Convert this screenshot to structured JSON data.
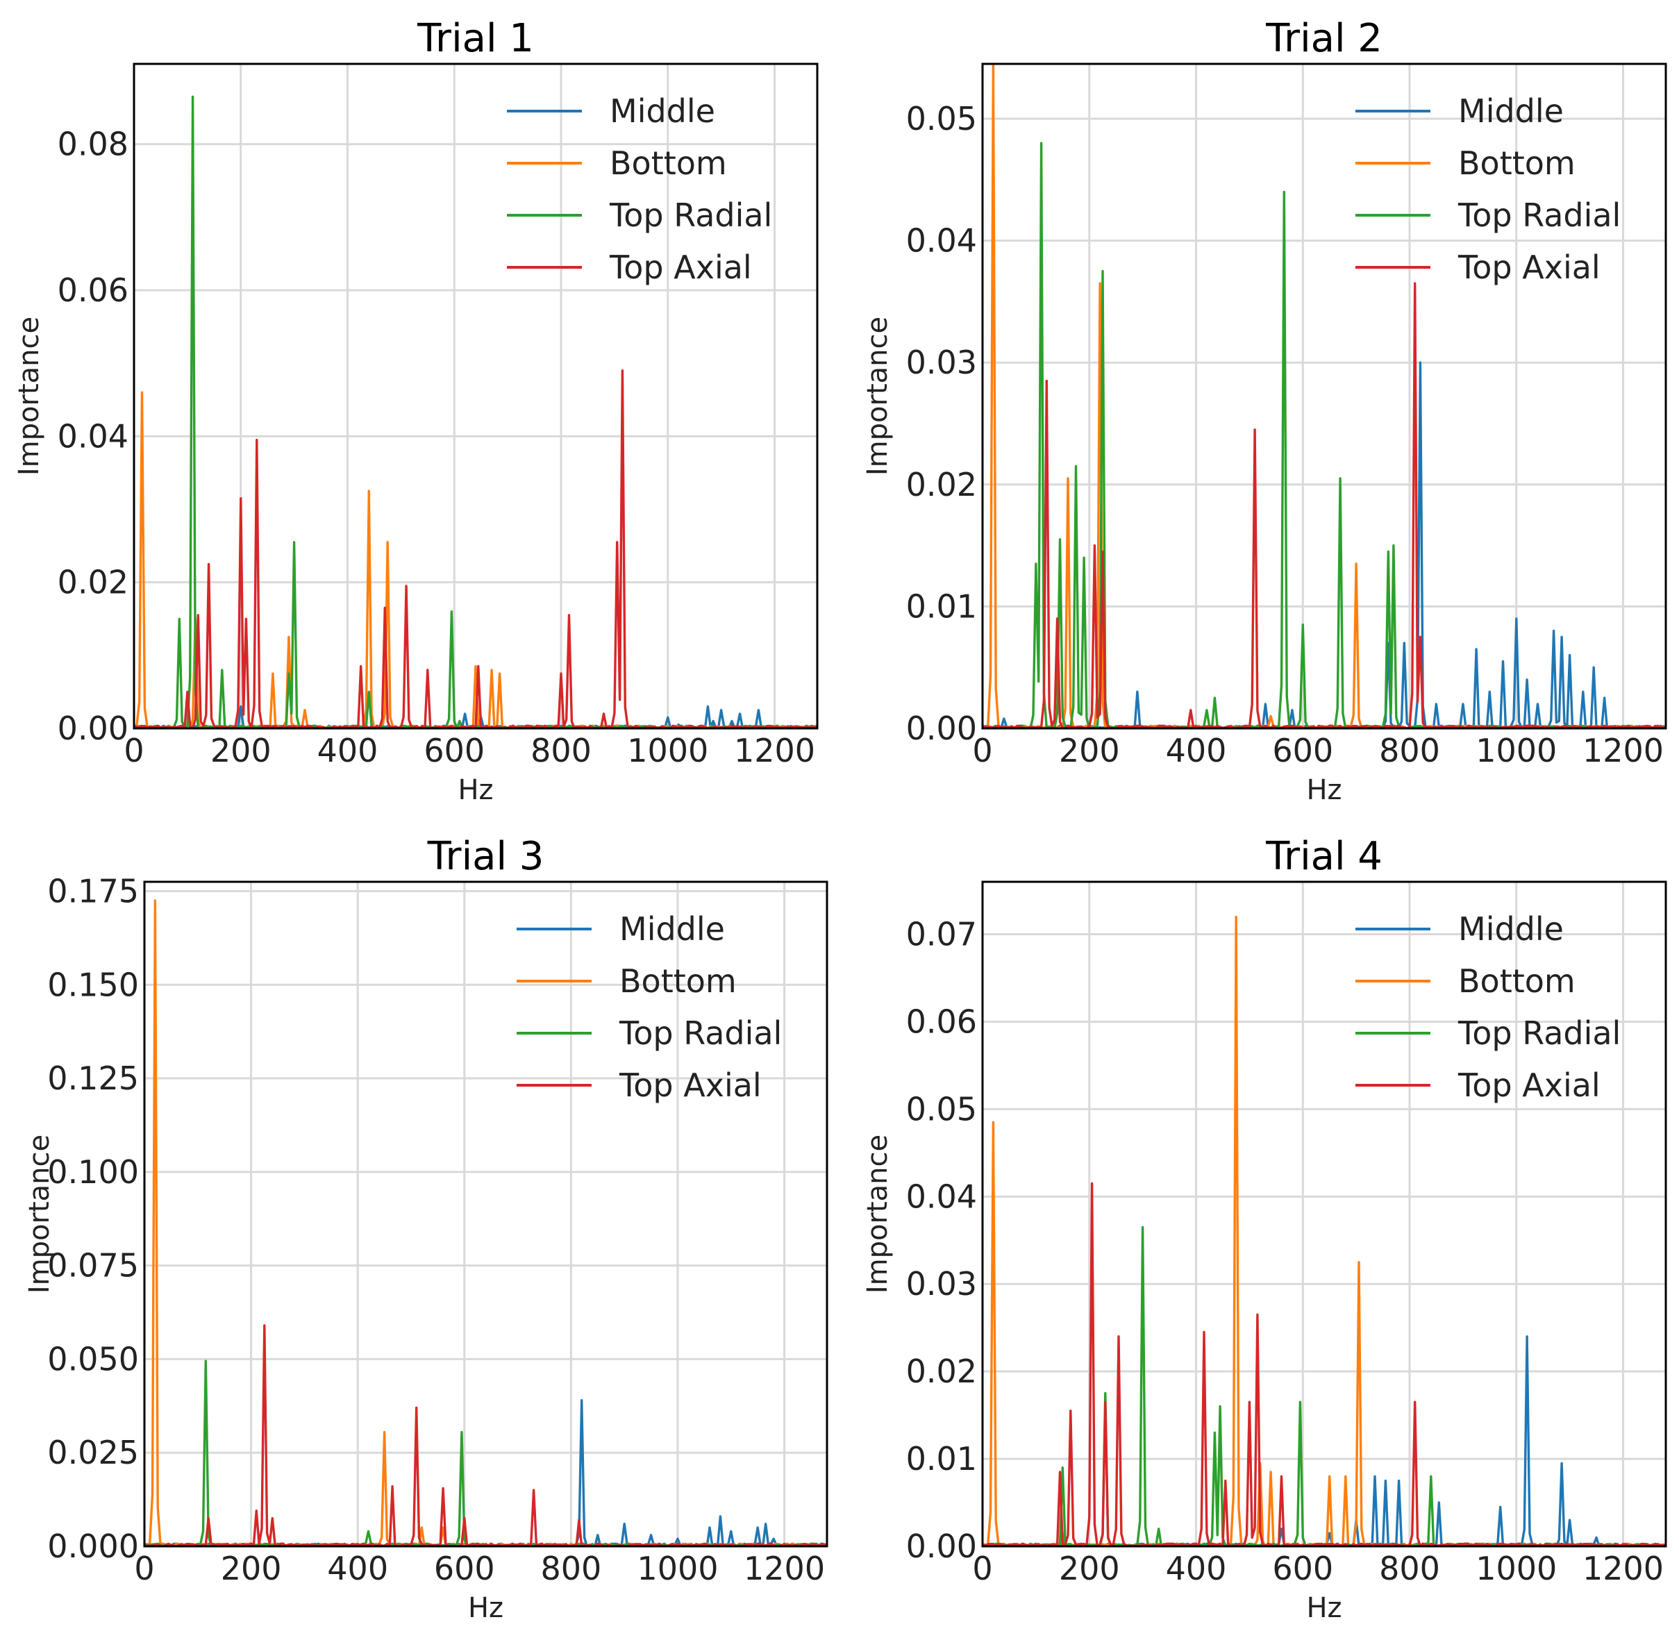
{
  "colors": {
    "Middle": "#1f77b4",
    "Bottom": "#ff7f0e",
    "Top Radial": "#2ca02c",
    "Top Axial": "#d62728"
  },
  "chart_data": [
    {
      "type": "line",
      "title": "Trial 1",
      "xlabel": "Hz",
      "ylabel": "Importance",
      "xlim": [
        0,
        1280
      ],
      "ylim": [
        0,
        0.091
      ],
      "xticks": [
        0,
        200,
        400,
        600,
        800,
        1000,
        1200
      ],
      "xtick_labels": [
        "0",
        "200",
        "400",
        "600",
        "800",
        "1000",
        "1200"
      ],
      "yticks": [
        0,
        0.02,
        0.04,
        0.06,
        0.08
      ],
      "ytick_labels": [
        "0.00",
        "0.02",
        "0.04",
        "0.06",
        "0.08"
      ],
      "legend": [
        "Middle",
        "Bottom",
        "Top Radial",
        "Top Axial"
      ],
      "legend_position": "top-right",
      "series": [
        {
          "name": "Middle",
          "peaks": [
            [
              1050,
              0.0
            ],
            [
              1075,
              0.003
            ],
            [
              1085,
              0.001
            ],
            [
              1100,
              0.0025
            ],
            [
              1120,
              0.001
            ],
            [
              1135,
              0.002
            ],
            [
              1150,
              0.0
            ],
            [
              1170,
              0.0025
            ],
            [
              1185,
              0.0
            ],
            [
              1000,
              0.0015
            ],
            [
              1020,
              0.0005
            ],
            [
              200,
              0.003
            ],
            [
              620,
              0.002
            ],
            [
              650,
              0.0015
            ]
          ]
        },
        {
          "name": "Bottom",
          "peaks": [
            [
              15,
              0.046
            ],
            [
              115,
              0.015
            ],
            [
              260,
              0.0075
            ],
            [
              290,
              0.0125
            ],
            [
              440,
              0.0325
            ],
            [
              475,
              0.0255
            ],
            [
              640,
              0.0085
            ],
            [
              670,
              0.008
            ],
            [
              685,
              0.0075
            ],
            [
              320,
              0.0025
            ]
          ]
        },
        {
          "name": "Top Radial",
          "peaks": [
            [
              85,
              0.015
            ],
            [
              110,
              0.0865
            ],
            [
              165,
              0.008
            ],
            [
              300,
              0.0255
            ],
            [
              290,
              0.0075
            ],
            [
              440,
              0.005
            ],
            [
              595,
              0.016
            ],
            [
              610,
              0.001
            ]
          ]
        },
        {
          "name": "Top Axial",
          "peaks": [
            [
              100,
              0.005
            ],
            [
              120,
              0.0155
            ],
            [
              140,
              0.0225
            ],
            [
              200,
              0.0315
            ],
            [
              210,
              0.015
            ],
            [
              230,
              0.0395
            ],
            [
              425,
              0.0085
            ],
            [
              470,
              0.0165
            ],
            [
              510,
              0.0195
            ],
            [
              550,
              0.008
            ],
            [
              645,
              0.0085
            ],
            [
              800,
              0.0075
            ],
            [
              815,
              0.0155
            ],
            [
              880,
              0.002
            ],
            [
              905,
              0.0255
            ],
            [
              915,
              0.049
            ]
          ]
        }
      ]
    },
    {
      "type": "line",
      "title": "Trial 2",
      "xlabel": "Hz",
      "ylabel": "Importance",
      "xlim": [
        0,
        1280
      ],
      "ylim": [
        0,
        0.0545
      ],
      "xticks": [
        0,
        200,
        400,
        600,
        800,
        1000,
        1200
      ],
      "xtick_labels": [
        "0",
        "200",
        "400",
        "600",
        "800",
        "1000",
        "1200"
      ],
      "yticks": [
        0,
        0.01,
        0.02,
        0.03,
        0.04,
        0.05
      ],
      "ytick_labels": [
        "0.00",
        "0.01",
        "0.02",
        "0.03",
        "0.04",
        "0.05"
      ],
      "legend": [
        "Middle",
        "Bottom",
        "Top Radial",
        "Top Axial"
      ],
      "legend_position": "top-right",
      "series": [
        {
          "name": "Middle",
          "peaks": [
            [
              290,
              0.003
            ],
            [
              530,
              0.002
            ],
            [
              580,
              0.0015
            ],
            [
              760,
              0.007
            ],
            [
              790,
              0.007
            ],
            [
              820,
              0.03
            ],
            [
              850,
              0.002
            ],
            [
              900,
              0.002
            ],
            [
              925,
              0.0065
            ],
            [
              950,
              0.003
            ],
            [
              975,
              0.0055
            ],
            [
              1000,
              0.009
            ],
            [
              1020,
              0.004
            ],
            [
              1040,
              0.002
            ],
            [
              1070,
              0.008
            ],
            [
              1085,
              0.0075
            ],
            [
              1100,
              0.006
            ],
            [
              1125,
              0.003
            ],
            [
              1145,
              0.005
            ],
            [
              1165,
              0.0025
            ],
            [
              40,
              0.0008
            ]
          ]
        },
        {
          "name": "Bottom",
          "peaks": [
            [
              20,
              0.0545
            ],
            [
              160,
              0.0205
            ],
            [
              220,
              0.0365
            ],
            [
              700,
              0.0135
            ],
            [
              540,
              0.001
            ]
          ]
        },
        {
          "name": "Top Radial",
          "peaks": [
            [
              100,
              0.0135
            ],
            [
              110,
              0.048
            ],
            [
              145,
              0.0155
            ],
            [
              175,
              0.0215
            ],
            [
              190,
              0.014
            ],
            [
              225,
              0.0375
            ],
            [
              420,
              0.0015
            ],
            [
              435,
              0.0025
            ],
            [
              565,
              0.044
            ],
            [
              600,
              0.0085
            ],
            [
              670,
              0.0205
            ],
            [
              760,
              0.0145
            ],
            [
              770,
              0.015
            ]
          ]
        },
        {
          "name": "Top Axial",
          "peaks": [
            [
              120,
              0.0285
            ],
            [
              140,
              0.009
            ],
            [
              210,
              0.015
            ],
            [
              225,
              0.0145
            ],
            [
              390,
              0.0015
            ],
            [
              510,
              0.0245
            ],
            [
              810,
              0.0365
            ],
            [
              820,
              0.0075
            ]
          ]
        }
      ]
    },
    {
      "type": "line",
      "title": "Trial 3",
      "xlabel": "Hz",
      "ylabel": "Importance",
      "xlim": [
        0,
        1280
      ],
      "ylim": [
        0,
        0.1775
      ],
      "xticks": [
        0,
        200,
        400,
        600,
        800,
        1000,
        1200
      ],
      "xtick_labels": [
        "0",
        "200",
        "400",
        "600",
        "800",
        "1000",
        "1200"
      ],
      "yticks": [
        0,
        0.025,
        0.05,
        0.075,
        0.1,
        0.125,
        0.15,
        0.175
      ],
      "ytick_labels": [
        "0.000",
        "0.025",
        "0.050",
        "0.075",
        "0.100",
        "0.125",
        "0.150",
        "0.175"
      ],
      "legend": [
        "Middle",
        "Bottom",
        "Top Radial",
        "Top Axial"
      ],
      "legend_position": "top-right",
      "series": [
        {
          "name": "Middle",
          "peaks": [
            [
              820,
              0.039
            ],
            [
              850,
              0.003
            ],
            [
              900,
              0.006
            ],
            [
              950,
              0.003
            ],
            [
              1000,
              0.002
            ],
            [
              1060,
              0.005
            ],
            [
              1080,
              0.008
            ],
            [
              1100,
              0.004
            ],
            [
              1150,
              0.005
            ],
            [
              1165,
              0.006
            ],
            [
              1180,
              0.002
            ]
          ]
        },
        {
          "name": "Bottom",
          "peaks": [
            [
              20,
              0.1725
            ],
            [
              450,
              0.0305
            ],
            [
              520,
              0.005
            ],
            [
              560,
              0.005
            ]
          ]
        },
        {
          "name": "Top Radial",
          "peaks": [
            [
              115,
              0.0495
            ],
            [
              420,
              0.004
            ],
            [
              595,
              0.0305
            ]
          ]
        },
        {
          "name": "Top Axial",
          "peaks": [
            [
              120,
              0.0075
            ],
            [
              210,
              0.0095
            ],
            [
              225,
              0.059
            ],
            [
              240,
              0.0075
            ],
            [
              465,
              0.016
            ],
            [
              510,
              0.037
            ],
            [
              560,
              0.0155
            ],
            [
              600,
              0.0075
            ],
            [
              730,
              0.015
            ],
            [
              815,
              0.007
            ]
          ]
        }
      ]
    },
    {
      "type": "line",
      "title": "Trial 4",
      "xlabel": "Hz",
      "ylabel": "Importance",
      "xlim": [
        0,
        1280
      ],
      "ylim": [
        0,
        0.076
      ],
      "xticks": [
        0,
        200,
        400,
        600,
        800,
        1000,
        1200
      ],
      "xtick_labels": [
        "0",
        "200",
        "400",
        "600",
        "800",
        "1000",
        "1200"
      ],
      "yticks": [
        0,
        0.01,
        0.02,
        0.03,
        0.04,
        0.05,
        0.06,
        0.07
      ],
      "ytick_labels": [
        "0.00",
        "0.01",
        "0.02",
        "0.03",
        "0.04",
        "0.05",
        "0.06",
        "0.07"
      ],
      "legend": [
        "Middle",
        "Bottom",
        "Top Radial",
        "Top Axial"
      ],
      "legend_position": "top-right",
      "series": [
        {
          "name": "Middle",
          "peaks": [
            [
              560,
              0.002
            ],
            [
              650,
              0.0015
            ],
            [
              700,
              0.003
            ],
            [
              735,
              0.008
            ],
            [
              755,
              0.0075
            ],
            [
              780,
              0.0075
            ],
            [
              855,
              0.005
            ],
            [
              970,
              0.0045
            ],
            [
              1020,
              0.024
            ],
            [
              1085,
              0.0095
            ],
            [
              1100,
              0.003
            ],
            [
              1150,
              0.001
            ]
          ]
        },
        {
          "name": "Bottom",
          "peaks": [
            [
              20,
              0.0485
            ],
            [
              475,
              0.072
            ],
            [
              520,
              0.0095
            ],
            [
              540,
              0.0085
            ],
            [
              650,
              0.008
            ],
            [
              680,
              0.008
            ],
            [
              705,
              0.0325
            ],
            [
              150,
              0.0015
            ]
          ]
        },
        {
          "name": "Top Radial",
          "peaks": [
            [
              150,
              0.009
            ],
            [
              230,
              0.0175
            ],
            [
              300,
              0.0365
            ],
            [
              330,
              0.002
            ],
            [
              435,
              0.013
            ],
            [
              445,
              0.016
            ],
            [
              595,
              0.0165
            ],
            [
              840,
              0.008
            ]
          ]
        },
        {
          "name": "Top Axial",
          "peaks": [
            [
              145,
              0.0085
            ],
            [
              165,
              0.0155
            ],
            [
              205,
              0.0415
            ],
            [
              230,
              0.0165
            ],
            [
              255,
              0.024
            ],
            [
              415,
              0.0245
            ],
            [
              455,
              0.0075
            ],
            [
              500,
              0.0165
            ],
            [
              515,
              0.0265
            ],
            [
              560,
              0.008
            ],
            [
              810,
              0.0165
            ]
          ]
        }
      ]
    }
  ]
}
